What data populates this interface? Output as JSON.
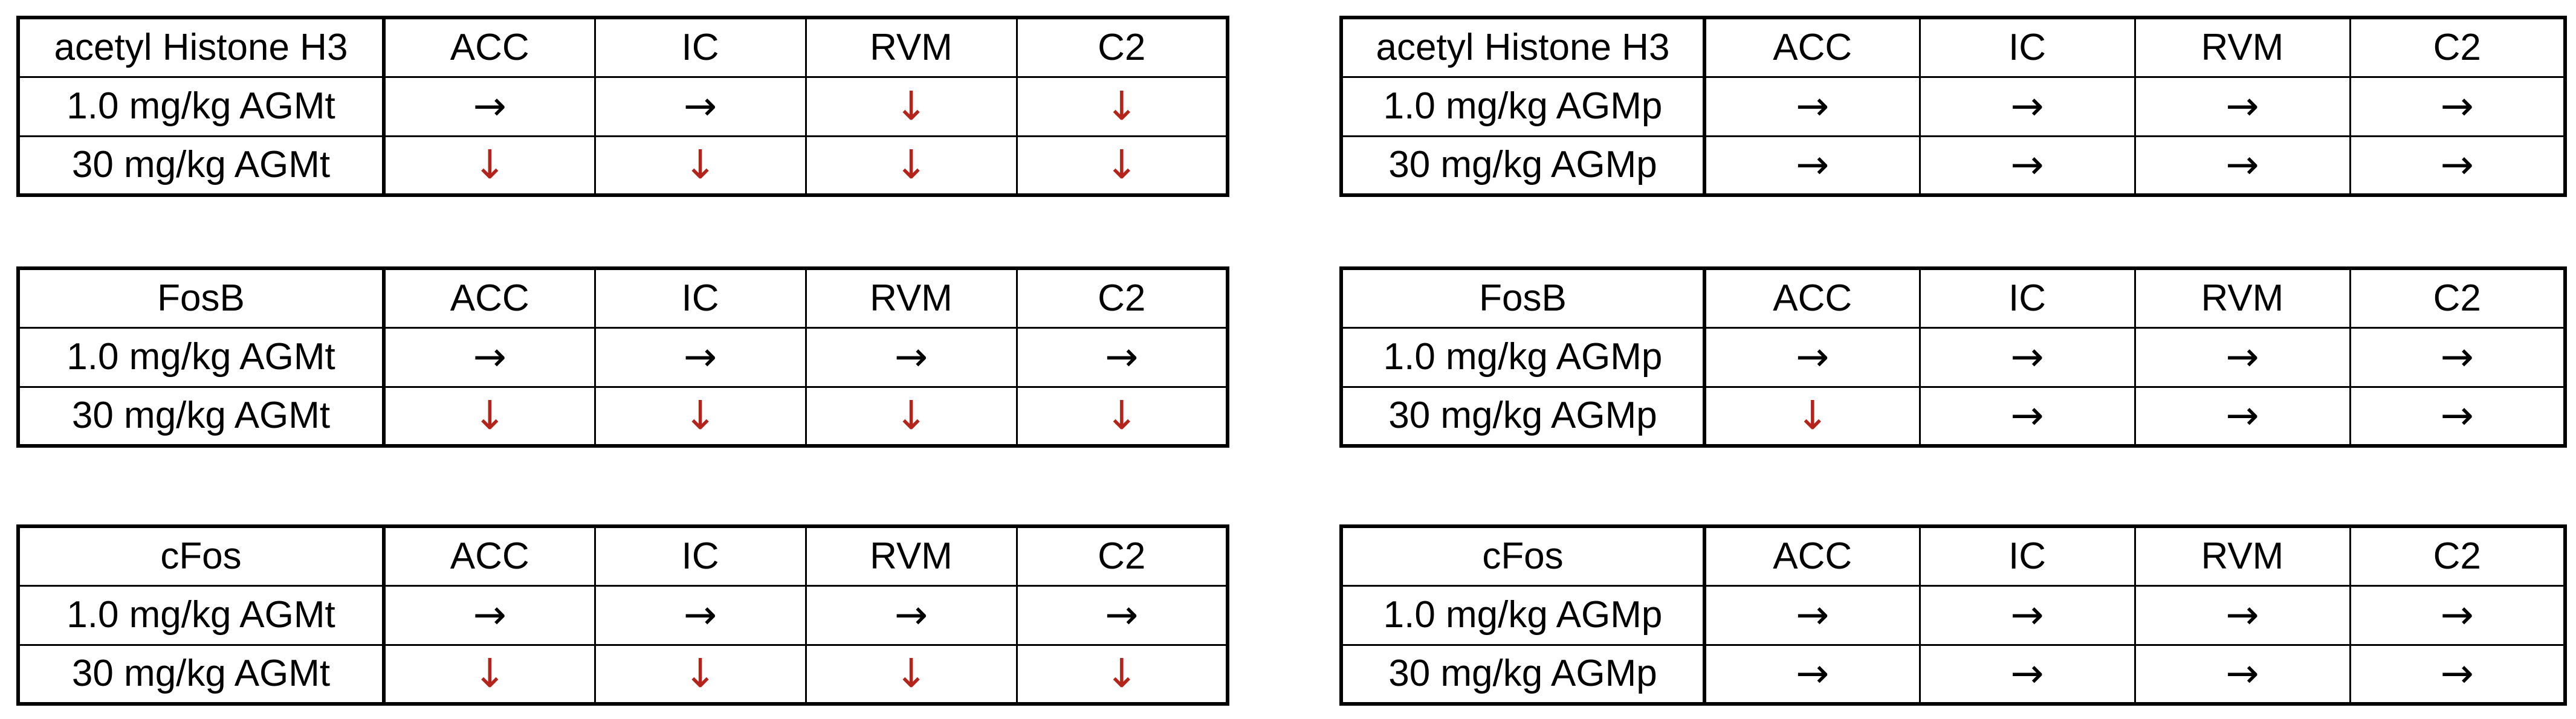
{
  "colors": {
    "unchanged_arrow": "#000000",
    "decrease_arrow": "#b5241b",
    "border": "#000000",
    "background": "#ffffff"
  },
  "icons": {
    "unchanged": "→",
    "decreased": "↓"
  },
  "regions": [
    "ACC",
    "IC",
    "RVM",
    "C2"
  ],
  "left_tables": [
    {
      "marker": "acetyl Histone H3",
      "rows": [
        {
          "dose": "1.0 mg/kg AGMt",
          "changes": [
            "right",
            "right",
            "down",
            "down"
          ]
        },
        {
          "dose": "30 mg/kg AGMt",
          "changes": [
            "down",
            "down",
            "down",
            "down"
          ]
        }
      ]
    },
    {
      "marker": "FosB",
      "rows": [
        {
          "dose": "1.0 mg/kg AGMt",
          "changes": [
            "right",
            "right",
            "right",
            "right"
          ]
        },
        {
          "dose": "30 mg/kg AGMt",
          "changes": [
            "down",
            "down",
            "down",
            "down"
          ]
        }
      ]
    },
    {
      "marker": "cFos",
      "rows": [
        {
          "dose": "1.0 mg/kg AGMt",
          "changes": [
            "right",
            "right",
            "right",
            "right"
          ]
        },
        {
          "dose": "30 mg/kg AGMt",
          "changes": [
            "down",
            "down",
            "down",
            "down"
          ]
        }
      ]
    }
  ],
  "right_tables": [
    {
      "marker": "acetyl Histone H3",
      "rows": [
        {
          "dose": "1.0 mg/kg AGMp",
          "changes": [
            "right",
            "right",
            "right",
            "right"
          ]
        },
        {
          "dose": "30 mg/kg AGMp",
          "changes": [
            "right",
            "right",
            "right",
            "right"
          ]
        }
      ]
    },
    {
      "marker": "FosB",
      "rows": [
        {
          "dose": "1.0 mg/kg AGMp",
          "changes": [
            "right",
            "right",
            "right",
            "right"
          ]
        },
        {
          "dose": "30 mg/kg AGMp",
          "changes": [
            "down",
            "right",
            "right",
            "right"
          ]
        }
      ]
    },
    {
      "marker": "cFos",
      "rows": [
        {
          "dose": "1.0 mg/kg AGMp",
          "changes": [
            "right",
            "right",
            "right",
            "right"
          ]
        },
        {
          "dose": "30 mg/kg AGMp",
          "changes": [
            "right",
            "right",
            "right",
            "right"
          ]
        }
      ]
    }
  ]
}
